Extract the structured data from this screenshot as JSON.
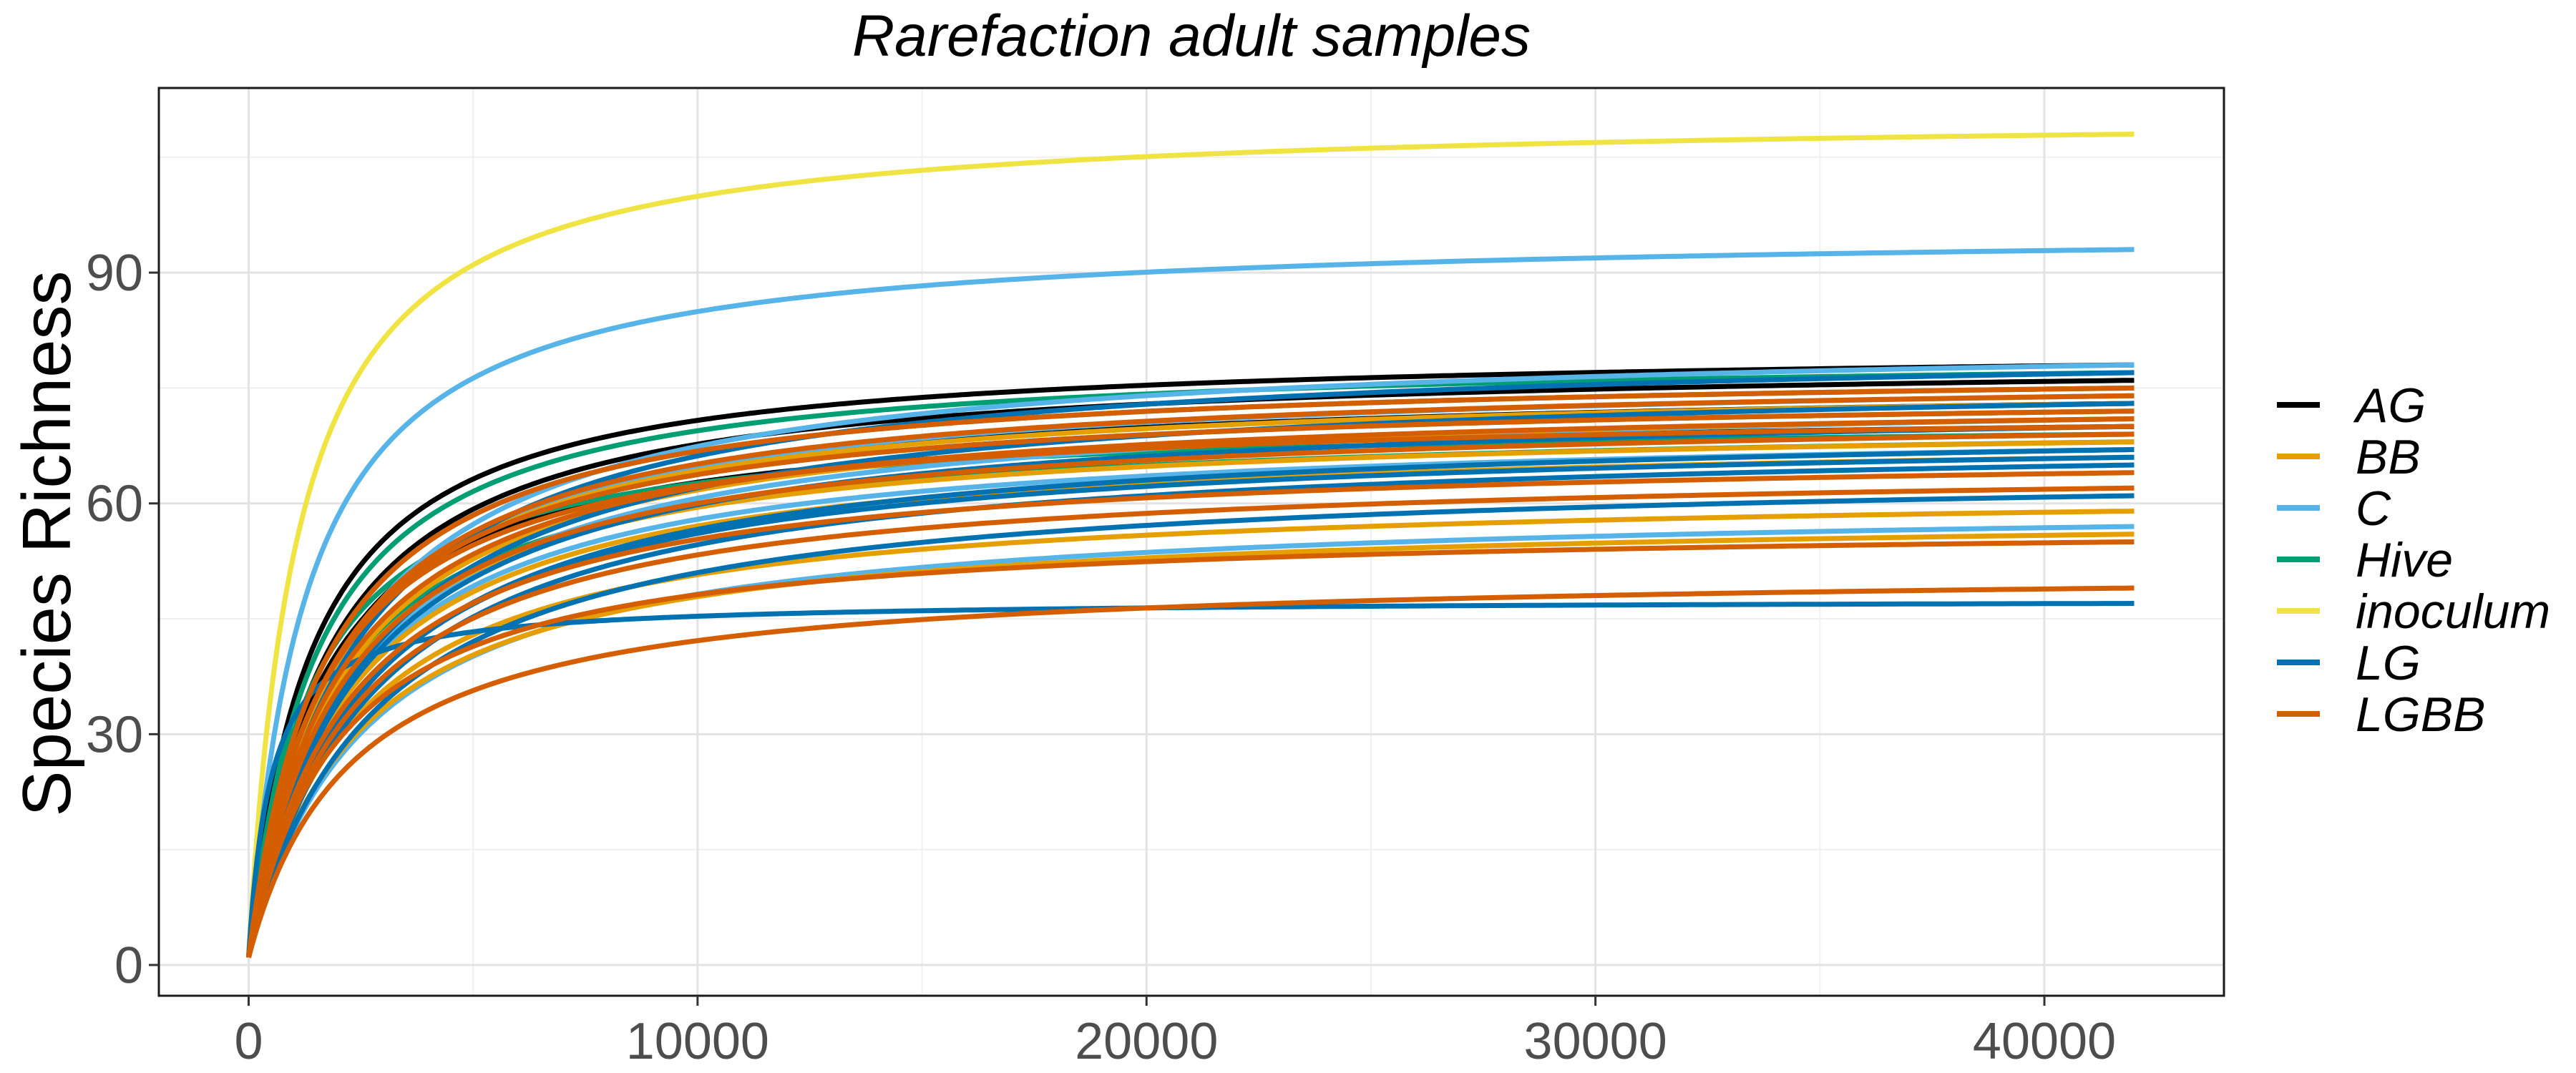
{
  "chart_data": {
    "type": "line",
    "title": "Rarefaction adult samples",
    "xlabel": "",
    "ylabel": "Species Richness",
    "xlim": [
      -2000,
      44000
    ],
    "ylim": [
      -4,
      114
    ],
    "x_ticks": [
      0,
      10000,
      20000,
      30000,
      40000
    ],
    "x_tick_labels": [
      "0",
      "10000",
      "20000",
      "30000",
      "40000"
    ],
    "y_ticks": [
      0,
      30,
      60,
      90
    ],
    "y_tick_labels": [
      "0",
      "30",
      "60",
      "90"
    ],
    "grid": true,
    "legend_position": "right",
    "legend": [
      {
        "name": "AG",
        "color": "#000000"
      },
      {
        "name": "BB",
        "color": "#E69F00"
      },
      {
        "name": "C",
        "color": "#56B4E9"
      },
      {
        "name": "Hive",
        "color": "#009E73"
      },
      {
        "name": "inoculum",
        "color": "#F0E442"
      },
      {
        "name": "LG",
        "color": "#0072B2"
      },
      {
        "name": "LGBB",
        "color": "#D55E00"
      }
    ],
    "x_end": 42000,
    "series": [
      {
        "group": "inoculum",
        "color": "#F0E442",
        "final": 108,
        "k": 1100
      },
      {
        "group": "C",
        "color": "#56B4E9",
        "final": 93,
        "k": 1300
      },
      {
        "group": "AG",
        "color": "#000000",
        "final": 78,
        "k": 1400
      },
      {
        "group": "AG",
        "color": "#000000",
        "final": 76,
        "k": 1700
      },
      {
        "group": "AG",
        "color": "#000000",
        "final": 73,
        "k": 1800
      },
      {
        "group": "AG",
        "color": "#000000",
        "final": 70,
        "k": 1600
      },
      {
        "group": "Hive",
        "color": "#009E73",
        "final": 77,
        "k": 1500
      },
      {
        "group": "Hive",
        "color": "#009E73",
        "final": 75,
        "k": 1700
      },
      {
        "group": "Hive",
        "color": "#009E73",
        "final": 72,
        "k": 1800
      },
      {
        "group": "Hive",
        "color": "#009E73",
        "final": 69,
        "k": 1400
      },
      {
        "group": "Hive",
        "color": "#009E73",
        "final": 68,
        "k": 1900
      },
      {
        "group": "C",
        "color": "#56B4E9",
        "final": 78,
        "k": 2200
      },
      {
        "group": "C",
        "color": "#56B4E9",
        "final": 74,
        "k": 2000
      },
      {
        "group": "C",
        "color": "#56B4E9",
        "final": 71,
        "k": 2400
      },
      {
        "group": "C",
        "color": "#56B4E9",
        "final": 67,
        "k": 2200
      },
      {
        "group": "C",
        "color": "#56B4E9",
        "final": 57,
        "k": 2600
      },
      {
        "group": "BB",
        "color": "#E69F00",
        "final": 73,
        "k": 1900
      },
      {
        "group": "BB",
        "color": "#E69F00",
        "final": 71,
        "k": 2100
      },
      {
        "group": "BB",
        "color": "#E69F00",
        "final": 68,
        "k": 2000
      },
      {
        "group": "BB",
        "color": "#E69F00",
        "final": 66,
        "k": 2200
      },
      {
        "group": "BB",
        "color": "#E69F00",
        "final": 59,
        "k": 2300
      },
      {
        "group": "BB",
        "color": "#E69F00",
        "final": 56,
        "k": 2400
      },
      {
        "group": "LG",
        "color": "#0072B2",
        "final": 77,
        "k": 2300
      },
      {
        "group": "LG",
        "color": "#0072B2",
        "final": 73,
        "k": 2500
      },
      {
        "group": "LG",
        "color": "#0072B2",
        "final": 70,
        "k": 2400
      },
      {
        "group": "LG",
        "color": "#0072B2",
        "final": 67,
        "k": 2600
      },
      {
        "group": "LG",
        "color": "#0072B2",
        "final": 66,
        "k": 2500
      },
      {
        "group": "LG",
        "color": "#0072B2",
        "final": 65,
        "k": 2700
      },
      {
        "group": "LG",
        "color": "#0072B2",
        "final": 61,
        "k": 2800
      },
      {
        "group": "LG",
        "color": "#0072B2",
        "final": 47,
        "k": 500
      },
      {
        "group": "LGBB",
        "color": "#D55E00",
        "final": 75,
        "k": 1700
      },
      {
        "group": "LGBB",
        "color": "#D55E00",
        "final": 74,
        "k": 1900
      },
      {
        "group": "LGBB",
        "color": "#D55E00",
        "final": 72,
        "k": 1800
      },
      {
        "group": "LGBB",
        "color": "#D55E00",
        "final": 71,
        "k": 2000
      },
      {
        "group": "LGBB",
        "color": "#D55E00",
        "final": 70,
        "k": 1700
      },
      {
        "group": "LGBB",
        "color": "#D55E00",
        "final": 69,
        "k": 2100
      },
      {
        "group": "LGBB",
        "color": "#D55E00",
        "final": 64,
        "k": 2200
      },
      {
        "group": "LGBB",
        "color": "#D55E00",
        "final": 62,
        "k": 2300
      },
      {
        "group": "LGBB",
        "color": "#D55E00",
        "final": 55,
        "k": 2000
      },
      {
        "group": "LGBB",
        "color": "#D55E00",
        "final": 49,
        "k": 2300
      }
    ]
  }
}
